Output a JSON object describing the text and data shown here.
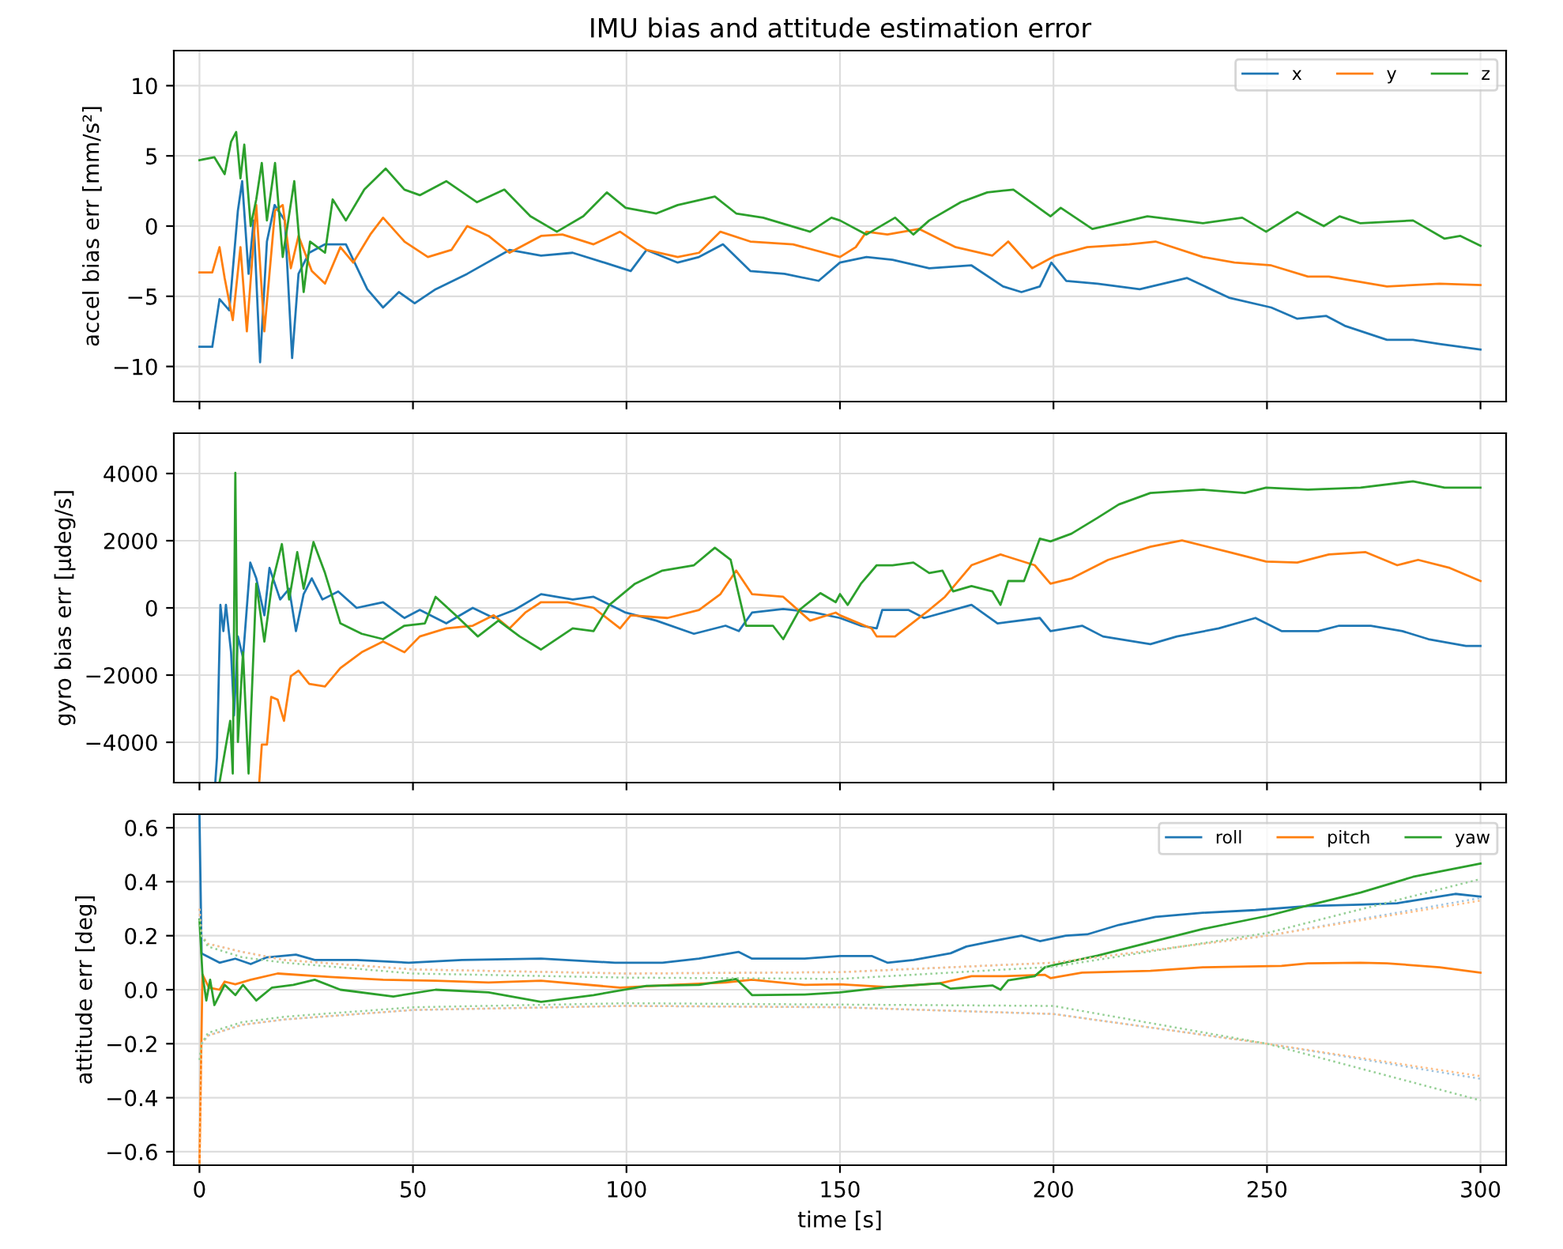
{
  "chart_data": [
    {
      "type": "line",
      "title": "IMU bias and attitude estimation error",
      "ylabel": "accel bias err [mm/s²]",
      "xlim": [
        -6,
        306
      ],
      "xticks": [
        0,
        50,
        100,
        150,
        200,
        250,
        300
      ],
      "ylim": [
        -12.5,
        12.5
      ],
      "yticks": [
        {
          "value": -10,
          "label": "−10"
        },
        {
          "value": -5,
          "label": "−5"
        },
        0,
        5,
        10
      ],
      "grid": true,
      "legend": "top right",
      "tick_labels": "y",
      "series": [
        {
          "name": "x",
          "color": "#1f77b4",
          "x": [
            0,
            3,
            4.7,
            7,
            9,
            10,
            11.5,
            12.7,
            14.2,
            15.8,
            17.6,
            20,
            21.7,
            23.2,
            25.7,
            29.4,
            34.3,
            39.3,
            43,
            46.7,
            50.4,
            55.3,
            62.7,
            72.6,
            80,
            87.4,
            94.8,
            101,
            104.7,
            112,
            117,
            122.6,
            129,
            137,
            145,
            150,
            156.2,
            162.3,
            170.9,
            180.8,
            188.2,
            192.5,
            196.8,
            199.5,
            203,
            210.3,
            220.2,
            231.3,
            241.1,
            251,
            257.1,
            263.9,
            268.2,
            278.1,
            284.2,
            290.4,
            300
          ],
          "values": [
            -8.6,
            -8.6,
            -5.2,
            -6,
            1.1,
            3.2,
            -3.4,
            0.4,
            -9.7,
            -1.1,
            1.5,
            0.4,
            -9.4,
            -3.4,
            -1.9,
            -1.3,
            -1.3,
            -4.5,
            -5.8,
            -4.7,
            -5.5,
            -4.5,
            -3.4,
            -1.7,
            -2.1,
            -1.9,
            -2.6,
            -3.2,
            -1.7,
            -2.6,
            -2.2,
            -1.3,
            -3.2,
            -3.4,
            -3.9,
            -2.6,
            -2.2,
            -2.4,
            -3.0,
            -2.8,
            -4.3,
            -4.7,
            -4.3,
            -2.6,
            -3.9,
            -4.1,
            -4.5,
            -3.7,
            -5.1,
            -5.8,
            -6.6,
            -6.4,
            -7.1,
            -8.1,
            -8.1,
            -8.4,
            -8.8
          ]
        },
        {
          "name": "y",
          "color": "#ff7f0e",
          "x": [
            0,
            3,
            4.7,
            5.9,
            7.8,
            9.6,
            11.1,
            13.3,
            15.2,
            17.7,
            19.5,
            21.4,
            23.2,
            26.3,
            29.4,
            33,
            36,
            40,
            43,
            48,
            53.5,
            59,
            62.7,
            67.7,
            72.6,
            80,
            85,
            92.3,
            98.5,
            104.7,
            112,
            117,
            122,
            129,
            139,
            150,
            153.7,
            156.2,
            161.1,
            168.5,
            177.1,
            185.7,
            189.4,
            195,
            200.5,
            207.9,
            217.7,
            223.9,
            235,
            242.4,
            251,
            259.6,
            264.5,
            278.1,
            290.4,
            300
          ],
          "values": [
            -3.3,
            -3.3,
            -1.5,
            -3.7,
            -6.7,
            -1.5,
            -7.5,
            1.5,
            -7.5,
            1.1,
            1.5,
            -3.0,
            -0.7,
            -3.2,
            -4.1,
            -1.5,
            -2.6,
            -0.6,
            0.6,
            -1.1,
            -2.2,
            -1.7,
            0,
            -0.7,
            -1.9,
            -0.7,
            -0.6,
            -1.3,
            -0.4,
            -1.7,
            -2.2,
            -1.9,
            -0.4,
            -1.1,
            -1.3,
            -2.2,
            -1.5,
            -0.4,
            -0.6,
            -0.2,
            -1.5,
            -2.1,
            -1.1,
            -3.0,
            -2.1,
            -1.5,
            -1.3,
            -1.1,
            -2.2,
            -2.6,
            -2.8,
            -3.6,
            -3.6,
            -4.3,
            -4.1,
            -4.2
          ]
        },
        {
          "name": "z",
          "color": "#2ca02c",
          "x": [
            0,
            3.5,
            5.9,
            7.4,
            8.6,
            9.6,
            10.5,
            12,
            13.3,
            14.6,
            15.8,
            17.7,
            19.5,
            22.2,
            24.4,
            25.9,
            29.4,
            31.2,
            34.3,
            38.6,
            43.6,
            48,
            51.6,
            57.8,
            65,
            71.4,
            77.5,
            83.7,
            89.9,
            95.4,
            99.8,
            107,
            112,
            120.7,
            125.7,
            132,
            143,
            148,
            150,
            156.2,
            162.9,
            167.2,
            170.9,
            178.3,
            184.5,
            190.6,
            199.3,
            201.7,
            209.1,
            222,
            235,
            244.2,
            249.8,
            257.1,
            263.3,
            267,
            271.9,
            284.2,
            291.6,
            295.3,
            300
          ],
          "values": [
            4.7,
            4.9,
            3.7,
            6.0,
            6.7,
            3.4,
            5.8,
            0,
            1.9,
            4.5,
            0.4,
            4.5,
            -2.2,
            3.2,
            -4.7,
            -1.1,
            -1.9,
            1.9,
            0.4,
            2.6,
            4.1,
            2.6,
            2.2,
            3.2,
            1.7,
            2.6,
            0.7,
            -0.4,
            0.7,
            2.4,
            1.3,
            0.9,
            1.5,
            2.1,
            0.9,
            0.6,
            -0.4,
            0.6,
            0.4,
            -0.6,
            0.6,
            -0.6,
            0.4,
            1.7,
            2.4,
            2.6,
            0.7,
            1.3,
            -0.2,
            0.7,
            0.2,
            0.6,
            -0.4,
            1.0,
            0,
            0.7,
            0.2,
            0.4,
            -0.9,
            -0.7,
            -1.4
          ]
        }
      ]
    },
    {
      "type": "line",
      "ylabel": "gyro bias err [µdeg/s]",
      "xlim": [
        -6,
        306
      ],
      "xticks": [
        0,
        50,
        100,
        150,
        200,
        250,
        300
      ],
      "ylim": [
        -5200,
        5200
      ],
      "yticks": [
        {
          "value": -4000,
          "label": "−4000"
        },
        {
          "value": -2000,
          "label": "−2000"
        },
        0,
        2000,
        4000
      ],
      "grid": true,
      "tick_labels": "y",
      "series": [
        {
          "color": "#1f77b4",
          "x": [
            3.7,
            4.1,
            4.9,
            5.6,
            6.2,
            7.4,
            8.1,
            9,
            10.2,
            11.9,
            13.3,
            15.2,
            16.4,
            18.9,
            21,
            22.6,
            24.4,
            26.3,
            28.8,
            32.5,
            36.8,
            43,
            48,
            51.6,
            57.8,
            64,
            68.9,
            73.8,
            80,
            87.4,
            92.3,
            99.8,
            107,
            115.8,
            123.2,
            126.3,
            129.4,
            136.7,
            144,
            150,
            154.9,
            158.6,
            159.9,
            166,
            169.7,
            180.8,
            186.9,
            196.8,
            199.3,
            206.7,
            211.6,
            222.7,
            228.9,
            238.7,
            247.3,
            253.4,
            262,
            266.9,
            274.3,
            281.7,
            287.8,
            296.6,
            300
          ],
          "values": [
            -5200,
            -4460,
            90,
            -690,
            90,
            -1320,
            -3200,
            -850,
            -1480,
            1350,
            880,
            -220,
            1190,
            250,
            570,
            -690,
            410,
            880,
            250,
            490,
            0,
            170,
            -300,
            -60,
            -460,
            0,
            -300,
            -60,
            410,
            250,
            330,
            -140,
            -380,
            -770,
            -530,
            -690,
            -140,
            -30,
            -140,
            -300,
            -530,
            -610,
            -60,
            -60,
            -300,
            90,
            -460,
            -300,
            -690,
            -530,
            -850,
            -1080,
            -850,
            -610,
            -300,
            -690,
            -690,
            -530,
            -530,
            -690,
            -930,
            -1130,
            -1130
          ]
        },
        {
          "color": "#ff7f0e",
          "x": [
            14,
            14.6,
            15.8,
            16.8,
            18.3,
            19.8,
            21.4,
            23.2,
            25.7,
            29.4,
            33,
            38,
            43,
            48,
            51.6,
            57.8,
            64,
            68.9,
            72.6,
            76.3,
            80,
            86.2,
            92.3,
            98.5,
            101,
            109.6,
            117,
            122,
            125.7,
            129.4,
            136.7,
            143,
            149,
            150,
            157.4,
            158.6,
            162.9,
            170.9,
            174.6,
            180.8,
            187.6,
            195.6,
            199.3,
            204.3,
            212.8,
            222.7,
            230.1,
            241.1,
            249.8,
            257.1,
            264.5,
            273.1,
            280.5,
            285.4,
            292.8,
            300
          ],
          "values": [
            -5200,
            -4070,
            -4070,
            -2650,
            -2730,
            -3360,
            -2030,
            -1870,
            -2260,
            -2340,
            -1790,
            -1320,
            -1000,
            -1320,
            -850,
            -610,
            -530,
            -220,
            -610,
            -140,
            170,
            170,
            0,
            -610,
            -220,
            -300,
            -60,
            410,
            1110,
            410,
            330,
            -380,
            -140,
            -220,
            -610,
            -850,
            -850,
            -60,
            330,
            1270,
            1590,
            1270,
            720,
            880,
            1430,
            1820,
            2010,
            1660,
            1380,
            1350,
            1590,
            1660,
            1270,
            1430,
            1190,
            800
          ]
        },
        {
          "color": "#2ca02c",
          "x": [
            4.7,
            7.2,
            7.8,
            8.4,
            9,
            10.2,
            11.5,
            13.3,
            15.2,
            17,
            19.3,
            21,
            22.9,
            24.4,
            26.7,
            29.4,
            33,
            38,
            43,
            48,
            52.8,
            55.3,
            60,
            65.2,
            70,
            75,
            80,
            87.4,
            92.3,
            96,
            102,
            108.4,
            115.8,
            120.7,
            124.4,
            128,
            134.3,
            136.7,
            140.5,
            145.4,
            149,
            150,
            151.8,
            154.9,
            158.6,
            162.3,
            167.2,
            170.9,
            174,
            176.5,
            180.8,
            185.7,
            187.6,
            189.4,
            193.1,
            196.8,
            199.3,
            204.2,
            210.3,
            215.3,
            222.7,
            235,
            244.8,
            249.8,
            259.6,
            271.9,
            284.2,
            291.6,
            300
          ],
          "values": [
            -5200,
            -3360,
            -4930,
            4020,
            -3990,
            -1320,
            -4930,
            720,
            -1000,
            720,
            1900,
            250,
            1660,
            570,
            1960,
            1040,
            -460,
            -770,
            -930,
            -530,
            -460,
            330,
            -220,
            -850,
            -380,
            -850,
            -1240,
            -610,
            -690,
            90,
            720,
            1110,
            1270,
            1790,
            1430,
            -530,
            -530,
            -930,
            -60,
            440,
            170,
            410,
            90,
            720,
            1270,
            1270,
            1350,
            1040,
            1110,
            490,
            650,
            490,
            90,
            800,
            800,
            2060,
            1980,
            2210,
            2680,
            3080,
            3420,
            3520,
            3420,
            3580,
            3520,
            3580,
            3770,
            3580,
            3580
          ]
        }
      ]
    },
    {
      "type": "line",
      "xlabel": "time [s]",
      "ylabel": "attitude err [deg]",
      "xlim": [
        -6,
        306
      ],
      "xticks": [
        0,
        50,
        100,
        150,
        200,
        250,
        300
      ],
      "ylim": [
        -0.65,
        0.65
      ],
      "yticks": [
        {
          "value": -0.6,
          "label": "−0.6"
        },
        {
          "value": -0.4,
          "label": "−0.4"
        },
        {
          "value": -0.2,
          "label": "−0.2"
        },
        {
          "value": 0,
          "label": "0.0"
        },
        0.2,
        0.4,
        0.6
      ],
      "grid": true,
      "legend": "top right",
      "series": [
        {
          "name": "roll",
          "color": "#1f77b4",
          "line_style": "solid",
          "x": [
            0,
            0.5,
            1,
            4.7,
            8.4,
            12,
            15.8,
            22.6,
            27,
            36.8,
            49,
            61.5,
            80,
            97.3,
            108.4,
            117,
            126.3,
            129.4,
            141.7,
            150,
            157.4,
            161.1,
            167.2,
            175.9,
            179.6,
            185.7,
            192.5,
            196.8,
            202.9,
            207.9,
            215.3,
            223.9,
            235,
            247.3,
            259.6,
            271.9,
            280.5,
            284.2,
            294.1,
            300
          ],
          "values": [
            0.65,
            0.135,
            0.13,
            0.1,
            0.115,
            0.095,
            0.12,
            0.13,
            0.11,
            0.11,
            0.1,
            0.11,
            0.115,
            0.1,
            0.1,
            0.115,
            0.14,
            0.115,
            0.115,
            0.125,
            0.125,
            0.1,
            0.11,
            0.135,
            0.16,
            0.18,
            0.2,
            0.18,
            0.2,
            0.205,
            0.24,
            0.27,
            0.285,
            0.295,
            0.31,
            0.315,
            0.32,
            0.33,
            0.355,
            0.345
          ]
        },
        {
          "name": "pitch",
          "color": "#ff7f0e",
          "line_style": "solid",
          "x": [
            0,
            0.7,
            2.2,
            4.7,
            5.9,
            8.4,
            12,
            18.3,
            30.6,
            43,
            55.3,
            67.7,
            80,
            98.5,
            110.8,
            123.2,
            129.4,
            141.7,
            150,
            161.1,
            173.4,
            180.8,
            188.2,
            198,
            199.3,
            206.7,
            222.7,
            235,
            253.4,
            259.6,
            271.9,
            278.1,
            290.4,
            300
          ],
          "values": [
            -0.65,
            0.057,
            0.008,
            0,
            0.03,
            0.02,
            0.037,
            0.06,
            0.047,
            0.037,
            0.033,
            0.027,
            0.033,
            0.008,
            0.018,
            0.027,
            0.037,
            0.018,
            0.02,
            0.01,
            0.024,
            0.05,
            0.05,
            0.055,
            0.043,
            0.063,
            0.07,
            0.083,
            0.088,
            0.098,
            0.1,
            0.098,
            0.083,
            0.063
          ]
        },
        {
          "name": "yaw",
          "color": "#2ca02c",
          "line_style": "solid",
          "x": [
            0,
            0.7,
            1.6,
            2.5,
            3.5,
            5.9,
            8.4,
            10.2,
            13.3,
            17,
            22,
            27,
            33,
            45.4,
            55.3,
            67.7,
            80,
            92.3,
            104.7,
            117,
            125.7,
            129.4,
            141.7,
            150,
            161.1,
            173.4,
            175.9,
            185.7,
            187.6,
            189.4,
            195.6,
            198,
            200.5,
            210.3,
            222.7,
            235,
            250,
            259.6,
            271.9,
            284.2,
            300
          ],
          "values": [
            0.26,
            0.057,
            -0.04,
            0.037,
            -0.057,
            0.018,
            -0.02,
            0.018,
            -0.04,
            0.008,
            0.018,
            0.037,
            0,
            -0.025,
            0,
            -0.01,
            -0.045,
            -0.02,
            0.014,
            0.018,
            0.04,
            -0.02,
            -0.018,
            -0.01,
            0.01,
            0.024,
            0.004,
            0.016,
            0,
            0.035,
            0.05,
            0.083,
            0.093,
            0.126,
            0.176,
            0.225,
            0.273,
            0.312,
            0.36,
            0.418,
            0.467
          ]
        },
        {
          "color": "#9fc4e0",
          "line_style": "dotted",
          "x": [
            0,
            0.5,
            2,
            10,
            20,
            50,
            100,
            150,
            200,
            250,
            300
          ],
          "values": [
            0.3,
            0.2,
            0.17,
            0.14,
            0.11,
            0.075,
            0.06,
            0.065,
            0.1,
            0.2,
            0.34
          ]
        },
        {
          "color": "#9fc4e0",
          "line_style": "dotted",
          "x": [
            0.5,
            2,
            10,
            20,
            50,
            100,
            150,
            200,
            250,
            300
          ],
          "values": [
            -0.2,
            -0.17,
            -0.13,
            -0.11,
            -0.075,
            -0.06,
            -0.065,
            -0.09,
            -0.2,
            -0.33
          ]
        },
        {
          "color": "#ffbf87",
          "line_style": "dotted",
          "x": [
            0,
            0.5,
            2,
            10,
            20,
            50,
            100,
            150,
            200,
            250,
            300
          ],
          "values": [
            0.3,
            0.2,
            0.17,
            0.14,
            0.11,
            0.075,
            0.06,
            0.065,
            0.1,
            0.2,
            0.33
          ]
        },
        {
          "color": "#ffbf87",
          "line_style": "dotted",
          "x": [
            0,
            0.5,
            2,
            10,
            20,
            50,
            100,
            150,
            200,
            250,
            300
          ],
          "values": [
            -0.65,
            -0.2,
            -0.17,
            -0.13,
            -0.11,
            -0.075,
            -0.06,
            -0.065,
            -0.09,
            -0.2,
            -0.32
          ]
        },
        {
          "color": "#96d096",
          "line_style": "dotted",
          "x": [
            0,
            0.5,
            2,
            10,
            20,
            50,
            100,
            150,
            200,
            250,
            300
          ],
          "values": [
            0.26,
            0.2,
            0.16,
            0.12,
            0.1,
            0.06,
            0.045,
            0.04,
            0.085,
            0.21,
            0.41
          ]
        },
        {
          "color": "#96d096",
          "line_style": "dotted",
          "x": [
            0,
            0.5,
            2,
            10,
            20,
            50,
            100,
            150,
            200,
            250,
            300
          ],
          "values": [
            -0.26,
            -0.2,
            -0.16,
            -0.12,
            -0.1,
            -0.065,
            -0.05,
            -0.055,
            -0.06,
            -0.2,
            -0.41
          ]
        }
      ]
    }
  ]
}
